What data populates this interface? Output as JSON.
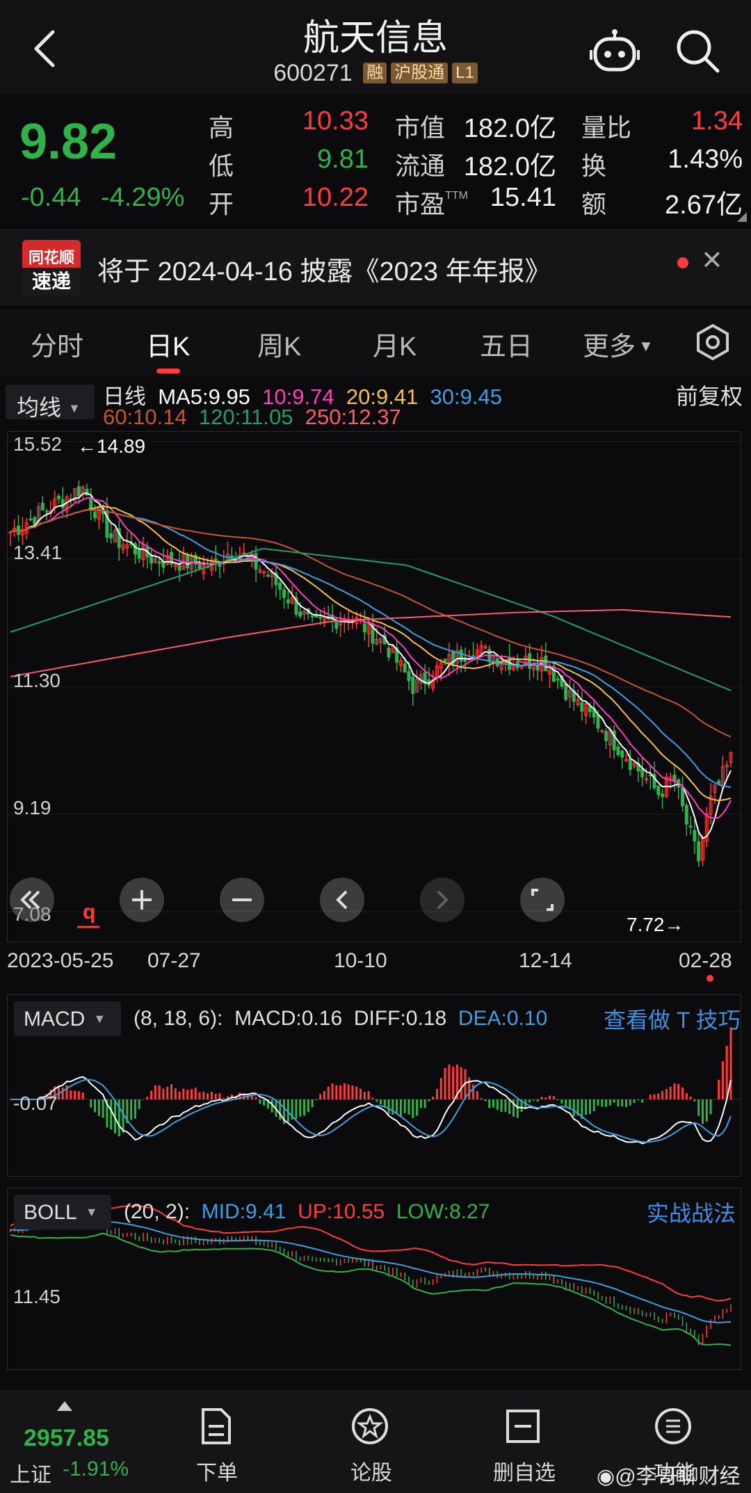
{
  "header": {
    "title": "航天信息",
    "code": "600271",
    "tags": [
      "融",
      "沪股通",
      "L1"
    ]
  },
  "quote": {
    "price": "9.82",
    "change": "-0.44",
    "change_pct": "-4.29%",
    "high_label": "高",
    "high": "10.33",
    "low_label": "低",
    "low": "9.81",
    "open_label": "开",
    "open": "10.22",
    "mcap_label": "市值",
    "mcap": "182.0亿",
    "float_label": "流通",
    "float": "182.0亿",
    "pe_label": "市盈",
    "pe_sup": "TTM",
    "pe": "15.41",
    "vr_label": "量比",
    "vr": "1.34",
    "turnover_label": "换",
    "turnover": "1.43%",
    "amount_label": "额",
    "amount": "2.67亿"
  },
  "news": {
    "logo_top": "同花顺",
    "logo_bottom": "速递",
    "text": "将于 2024-04-16 披露《2023 年年报》"
  },
  "tabs": [
    "分时",
    "日K",
    "周K",
    "月K",
    "五日",
    "更多"
  ],
  "active_tab": "日K",
  "ma_legend": {
    "button": "均线",
    "period": "日线",
    "ma5": "MA5:9.95",
    "ma10": "10:9.74",
    "ma20": "20:9.41",
    "ma30": "30:9.45",
    "ma60": "60:10.14",
    "ma120": "120:11.05",
    "ma250": "250:12.37",
    "adjust": "前复权"
  },
  "kline": {
    "y_ticks": [
      "15.52",
      "13.41",
      "11.30",
      "9.19",
      "7.08"
    ],
    "max_label": "←14.89",
    "min_label": "7.72→",
    "dates": [
      "2023-05-25",
      "07-27",
      "10-10",
      "12-14",
      "02-28"
    ]
  },
  "macd": {
    "button": "MACD",
    "params": "(8, 18, 6):",
    "macd": "MACD:0.16",
    "diff": "DIFF:0.18",
    "dea": "DEA:0.10",
    "link": "查看做 T 技巧",
    "y_tick": "-0.07"
  },
  "boll": {
    "button": "BOLL",
    "params": "(20, 2):",
    "mid": "MID:9.41",
    "up": "UP:10.55",
    "low": "LOW:8.27",
    "link": "实战战法",
    "y_tick": "11.45"
  },
  "bottom": {
    "index_value": "2957.85",
    "index_name": "上证",
    "index_change": "-1.91%",
    "items": [
      "下单",
      "论股",
      "删自选",
      "功能"
    ]
  },
  "watermark": "@李哥聊财经",
  "colors": {
    "up": "#ff3b3b",
    "down": "#2fb24a",
    "ma5": "#ffffff",
    "ma10": "#ff3bbf",
    "ma20": "#f5c242",
    "ma30": "#3b9fe0",
    "ma60": "#c8552a",
    "ma120": "#1f9e6e",
    "ma250": "#ff5a6e",
    "link": "#3b8fe0"
  }
}
